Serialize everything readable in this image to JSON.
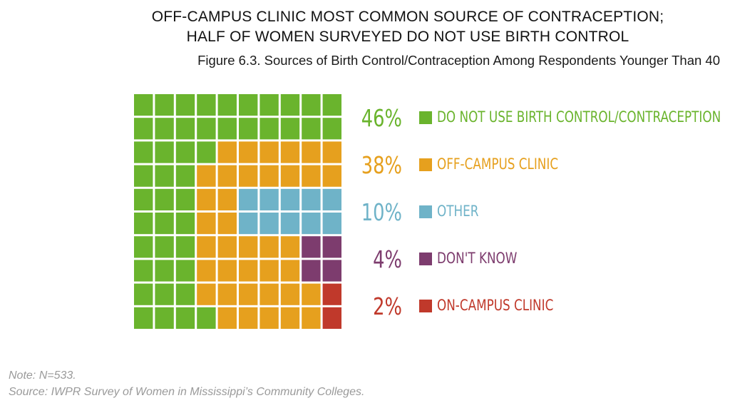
{
  "header": {
    "title_line1": "OFF-CAMPUS CLINIC MOST COMMON SOURCE OF CONTRACEPTION;",
    "title_line2": "HALF OF WOMEN SURVEYED DO NOT USE BIRTH CONTROL",
    "subtitle": "Figure 6.3. Sources of Birth Control/Contraception Among Respondents Younger Than 40"
  },
  "chart_data": {
    "type": "waffle",
    "grid": {
      "rows": 10,
      "cols": 10
    },
    "title": "Sources of Birth Control/Contraception Among Respondents Younger Than 40",
    "categories": [
      {
        "label": "DO NOT USE BIRTH CONTROL/CONTRACEPTION",
        "value": 46,
        "display": "46%",
        "color": "#6ab42d"
      },
      {
        "label": "OFF-CAMPUS CLINIC",
        "value": 38,
        "display": "38%",
        "color": "#e6a01e"
      },
      {
        "label": "OTHER",
        "value": 10,
        "display": "10%",
        "color": "#6fb3c8"
      },
      {
        "label": "DON'T KNOW",
        "value": 4,
        "display": "4%",
        "color": "#7d3c6e"
      },
      {
        "label": "ON-CAMPUS CLINIC",
        "value": 2,
        "display": "2%",
        "color": "#c0392b"
      }
    ],
    "cell_map": [
      [
        0,
        0,
        0,
        0,
        0,
        0,
        0,
        0,
        0,
        0
      ],
      [
        0,
        0,
        0,
        0,
        0,
        0,
        0,
        0,
        0,
        0
      ],
      [
        0,
        0,
        0,
        0,
        1,
        1,
        1,
        1,
        1,
        1
      ],
      [
        0,
        0,
        0,
        1,
        1,
        1,
        1,
        1,
        1,
        1
      ],
      [
        0,
        0,
        0,
        1,
        1,
        2,
        2,
        2,
        2,
        2
      ],
      [
        0,
        0,
        0,
        1,
        1,
        2,
        2,
        2,
        2,
        2
      ],
      [
        0,
        0,
        0,
        1,
        1,
        1,
        1,
        1,
        3,
        3
      ],
      [
        0,
        0,
        0,
        1,
        1,
        1,
        1,
        1,
        3,
        3
      ],
      [
        0,
        0,
        0,
        1,
        1,
        1,
        1,
        1,
        1,
        4
      ],
      [
        0,
        0,
        0,
        0,
        1,
        1,
        1,
        1,
        1,
        4
      ]
    ]
  },
  "footer": {
    "note": "Note: N=533.",
    "source": "Source: IWPR Survey of Women in Mississippi’s Community Colleges."
  }
}
